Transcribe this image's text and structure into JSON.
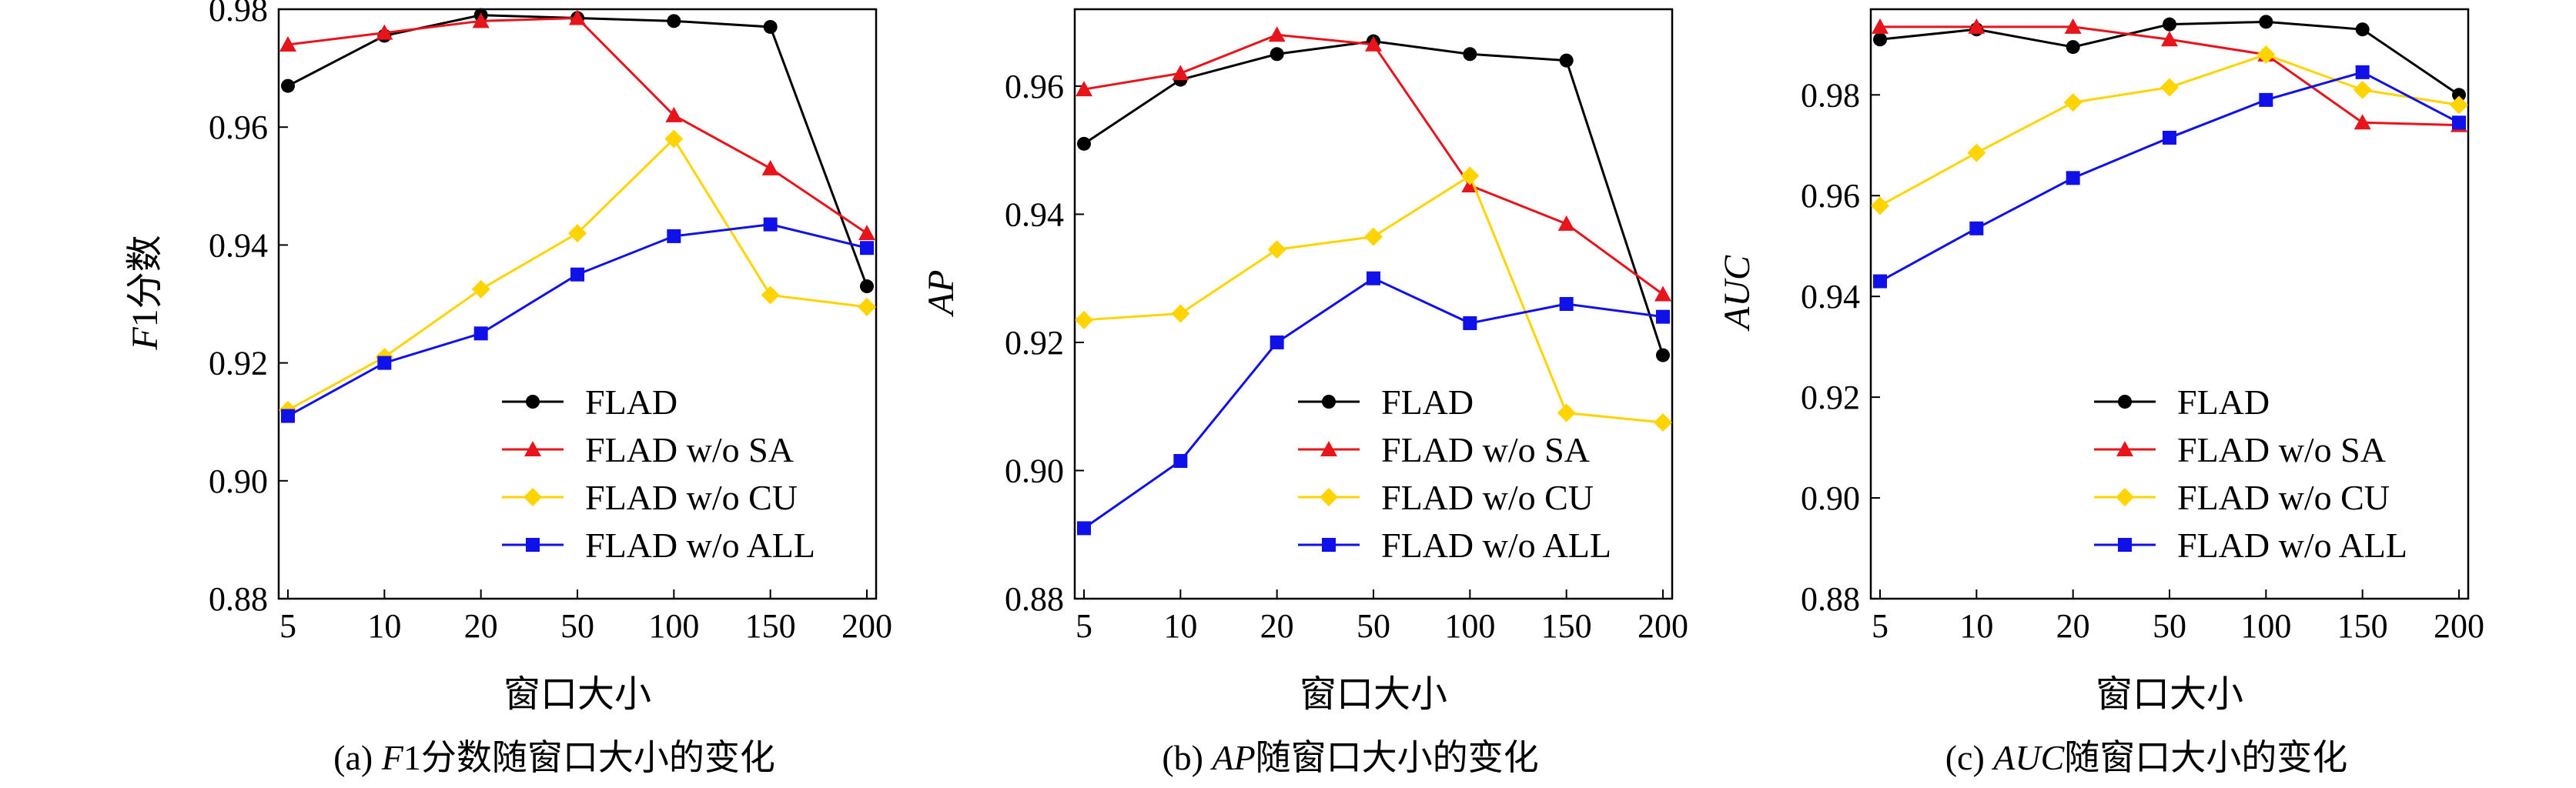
{
  "chart_data": [
    {
      "type": "line",
      "panel": "a",
      "caption": {
        "prefix": "(a)",
        "italic": "F",
        "rest": "1分数随窗口大小的变化"
      },
      "xlabel": "窗口大小",
      "ylabel": {
        "italic": "F",
        "rest": "1分数"
      },
      "categories": [
        "5",
        "10",
        "20",
        "50",
        "100",
        "150",
        "200"
      ],
      "ylim": [
        0.88,
        0.98
      ],
      "yticks": [
        "0.88",
        "0.90",
        "0.92",
        "0.94",
        "0.96",
        "0.98"
      ],
      "legend_position": "lower-center",
      "series": [
        {
          "name": "FLAD",
          "color": "#000000",
          "marker": "circle",
          "values": [
            0.967,
            0.9755,
            0.979,
            0.9785,
            0.978,
            0.977,
            0.933
          ]
        },
        {
          "name": "FLAD w/o SA",
          "color": "#e8141b",
          "marker": "triangle",
          "values": [
            0.974,
            0.976,
            0.978,
            0.9785,
            0.962,
            0.953,
            0.942
          ]
        },
        {
          "name": "FLAD w/o CU",
          "color": "#ffd400",
          "marker": "diamond",
          "values": [
            0.912,
            0.921,
            0.9325,
            0.942,
            0.958,
            0.9315,
            0.9295
          ]
        },
        {
          "name": "FLAD w/o ALL",
          "color": "#1010e8",
          "marker": "square",
          "values": [
            0.911,
            0.92,
            0.925,
            0.935,
            0.9415,
            0.9435,
            0.9395
          ]
        }
      ]
    },
    {
      "type": "line",
      "panel": "b",
      "caption": {
        "prefix": "(b)",
        "italic": "AP",
        "rest": "随窗口大小的变化"
      },
      "xlabel": "窗口大小",
      "ylabel": {
        "italic": "AP",
        "rest": ""
      },
      "categories": [
        "5",
        "10",
        "20",
        "50",
        "100",
        "150",
        "200"
      ],
      "ylim": [
        0.88,
        0.972
      ],
      "yticks": [
        "0.88",
        "0.90",
        "0.92",
        "0.94",
        "0.96"
      ],
      "legend_position": "lower-center",
      "series": [
        {
          "name": "FLAD",
          "color": "#000000",
          "marker": "circle",
          "values": [
            0.951,
            0.961,
            0.965,
            0.967,
            0.965,
            0.964,
            0.918
          ]
        },
        {
          "name": "FLAD w/o SA",
          "color": "#e8141b",
          "marker": "triangle",
          "values": [
            0.9595,
            0.962,
            0.968,
            0.9665,
            0.9445,
            0.9385,
            0.9275
          ]
        },
        {
          "name": "FLAD w/o CU",
          "color": "#ffd400",
          "marker": "diamond",
          "values": [
            0.9235,
            0.9245,
            0.9345,
            0.9365,
            0.946,
            0.909,
            0.9075
          ]
        },
        {
          "name": "FLAD w/o ALL",
          "color": "#1010e8",
          "marker": "square",
          "values": [
            0.891,
            0.9015,
            0.92,
            0.93,
            0.923,
            0.926,
            0.924
          ]
        }
      ]
    },
    {
      "type": "line",
      "panel": "c",
      "caption": {
        "prefix": "(c)",
        "italic": "AUC",
        "rest": "随窗口大小的变化"
      },
      "xlabel": "窗口大小",
      "ylabel": {
        "italic": "AUC",
        "rest": ""
      },
      "categories": [
        "5",
        "10",
        "20",
        "50",
        "100",
        "150",
        "200"
      ],
      "ylim": [
        0.88,
        0.997
      ],
      "yticks": [
        "0.88",
        "0.90",
        "0.92",
        "0.94",
        "0.96",
        "0.98"
      ],
      "legend_position": "lower-center",
      "series": [
        {
          "name": "FLAD",
          "color": "#000000",
          "marker": "circle",
          "values": [
            0.991,
            0.993,
            0.9895,
            0.994,
            0.9945,
            0.993,
            0.98
          ]
        },
        {
          "name": "FLAD w/o SA",
          "color": "#e8141b",
          "marker": "triangle",
          "values": [
            0.9935,
            0.9935,
            0.9935,
            0.991,
            0.988,
            0.9745,
            0.974
          ]
        },
        {
          "name": "FLAD w/o CU",
          "color": "#ffd400",
          "marker": "diamond",
          "values": [
            0.958,
            0.9685,
            0.9785,
            0.9815,
            0.988,
            0.981,
            0.978
          ]
        },
        {
          "name": "FLAD w/o ALL",
          "color": "#1010e8",
          "marker": "square",
          "values": [
            0.943,
            0.9535,
            0.9635,
            0.9715,
            0.979,
            0.9845,
            0.9745
          ]
        }
      ]
    }
  ]
}
